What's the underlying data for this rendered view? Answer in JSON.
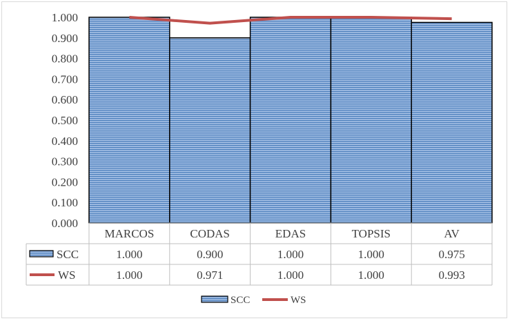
{
  "chart_data": {
    "type": "bar",
    "categories": [
      "MARCOS",
      "CODAS",
      "EDAS",
      "TOPSIS",
      "AV"
    ],
    "series": [
      {
        "name": "SCC",
        "type": "bar",
        "values": [
          1.0,
          0.9,
          1.0,
          1.0,
          0.975
        ],
        "labels": [
          "1.000",
          "0.900",
          "1.000",
          "1.000",
          "0.975"
        ],
        "color": "#5b8dc9"
      },
      {
        "name": "WS",
        "type": "line",
        "values": [
          1.0,
          0.971,
          1.0,
          1.0,
          0.993
        ],
        "labels": [
          "1.000",
          "0.971",
          "1.000",
          "1.000",
          "0.993"
        ],
        "color": "#c0504d"
      }
    ],
    "ylim": [
      0,
      1
    ],
    "yticks": [
      "0.000",
      "0.100",
      "0.200",
      "0.300",
      "0.400",
      "0.500",
      "0.600",
      "0.700",
      "0.800",
      "0.900",
      "1.000"
    ],
    "data_table": true,
    "grid": false,
    "legend_position": "bottom",
    "title": "",
    "xlabel": "",
    "ylabel": ""
  }
}
